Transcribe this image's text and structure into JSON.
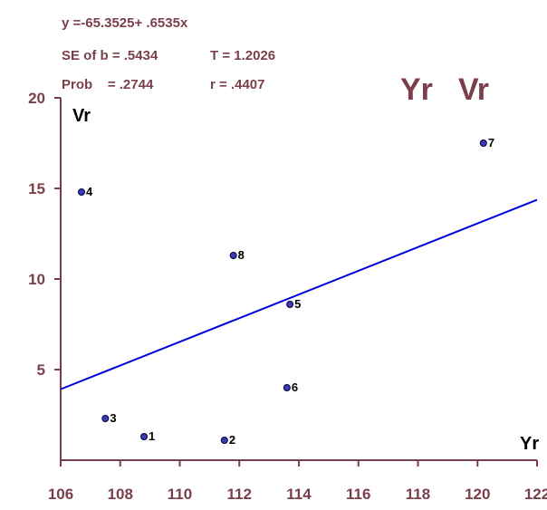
{
  "stats": {
    "line1": "y =-65.3525+ .6535x",
    "line2a": "SE of b = .5434",
    "line2b": "T = 1.2026",
    "line3a": "Prob    = .2744",
    "line3b": "r = .4407"
  },
  "chart_data": {
    "type": "scatter",
    "title_left": "Yr",
    "title_right": "Vr",
    "xlabel": "Yr",
    "ylabel": "Vr",
    "xlim": [
      106,
      122
    ],
    "ylim": [
      0,
      20
    ],
    "xticks": [
      106,
      108,
      110,
      112,
      114,
      116,
      118,
      120,
      122
    ],
    "yticks": [
      5,
      10,
      15,
      20
    ],
    "points": [
      {
        "label": "1",
        "x": 108.8,
        "y": 1.3
      },
      {
        "label": "2",
        "x": 111.5,
        "y": 1.1
      },
      {
        "label": "3",
        "x": 107.5,
        "y": 2.3
      },
      {
        "label": "4",
        "x": 106.7,
        "y": 14.8
      },
      {
        "label": "5",
        "x": 113.7,
        "y": 8.6
      },
      {
        "label": "6",
        "x": 113.6,
        "y": 4.0
      },
      {
        "label": "7",
        "x": 120.2,
        "y": 17.5
      },
      {
        "label": "8",
        "x": 111.8,
        "y": 11.3
      }
    ],
    "regression": {
      "intercept": -65.3525,
      "slope": 0.6535
    },
    "colors": {
      "axis": "#7a3f4a",
      "text": "#7a3f4a",
      "line": "#0000dd",
      "point_fill": "#3b3bb8",
      "point_stroke": "#000033"
    }
  }
}
